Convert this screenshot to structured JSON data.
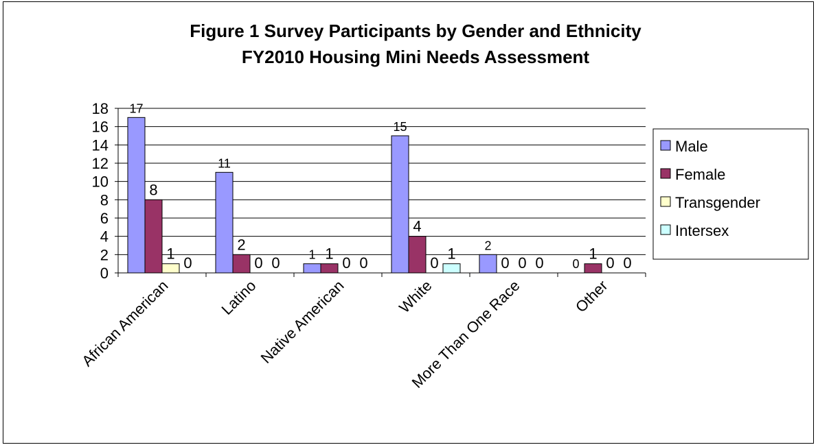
{
  "chart_data": {
    "type": "bar",
    "title": "Figure 1 Survey Participants by Gender and Ethnicity",
    "subtitle": "FY2010 Housing Mini Needs Assessment",
    "categories": [
      "African American",
      "Latino",
      "Native American",
      "White",
      "More Than One Race",
      "Other"
    ],
    "series": [
      {
        "name": "Male",
        "color": "#9999ff",
        "values": [
          17,
          11,
          1,
          15,
          2,
          0
        ]
      },
      {
        "name": "Female",
        "color": "#993366",
        "values": [
          8,
          2,
          1,
          4,
          0,
          1
        ]
      },
      {
        "name": "Transgender",
        "color": "#ffffcc",
        "values": [
          1,
          0,
          0,
          0,
          0,
          0
        ]
      },
      {
        "name": "Intersex",
        "color": "#ccffff",
        "values": [
          0,
          0,
          0,
          1,
          0,
          0
        ]
      }
    ],
    "y_ticks": [
      "0",
      "2",
      "4",
      "6",
      "8",
      "10",
      "12",
      "14",
      "16",
      "18"
    ],
    "ylim": [
      0,
      18
    ],
    "grid": true,
    "legend_position": "right"
  }
}
